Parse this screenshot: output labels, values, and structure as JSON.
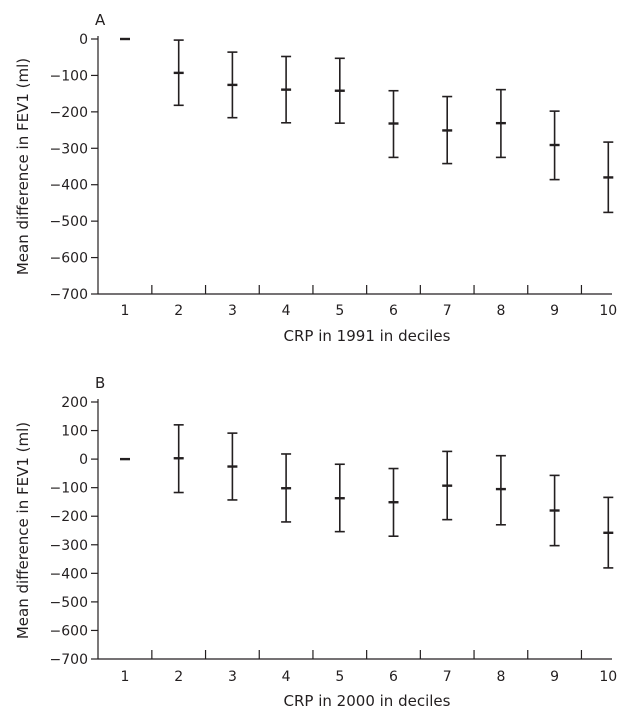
{
  "chart_data": [
    {
      "type": "errorbar",
      "panel_label": "A",
      "xlabel": "CRP in 1991 in deciles",
      "ylabel": "Mean difference in FEV1 (ml)",
      "ylim": [
        -700,
        0
      ],
      "yticks": [
        0,
        -100,
        -200,
        -300,
        -400,
        -500,
        -600,
        -700
      ],
      "categories": [
        "1",
        "2",
        "3",
        "4",
        "5",
        "6",
        "7",
        "8",
        "9",
        "10"
      ],
      "mean": [
        0,
        -93,
        -126,
        -139,
        -142,
        -232,
        -251,
        -231,
        -291,
        -380
      ],
      "lower": [
        0,
        -182,
        -216,
        -230,
        -231,
        -325,
        -342,
        -325,
        -386,
        -476
      ],
      "upper": [
        0,
        -3,
        -36,
        -48,
        -53,
        -142,
        -158,
        -139,
        -198,
        -283
      ]
    },
    {
      "type": "errorbar",
      "panel_label": "B",
      "xlabel": "CRP in 2000 in deciles",
      "ylabel": "Mean difference in FEV1 (ml)",
      "ylim": [
        -700,
        200
      ],
      "yticks": [
        200,
        100,
        0,
        -100,
        -200,
        -300,
        -400,
        -500,
        -600,
        -700
      ],
      "categories": [
        "1",
        "2",
        "3",
        "4",
        "5",
        "6",
        "7",
        "8",
        "9",
        "10"
      ],
      "mean": [
        0,
        3,
        -26,
        -102,
        -137,
        -151,
        -93,
        -105,
        -180,
        -258
      ],
      "lower": [
        0,
        -117,
        -143,
        -220,
        -254,
        -270,
        -212,
        -230,
        -303,
        -381
      ],
      "upper": [
        0,
        120,
        91,
        18,
        -18,
        -33,
        27,
        12,
        -57,
        -134
      ]
    }
  ]
}
